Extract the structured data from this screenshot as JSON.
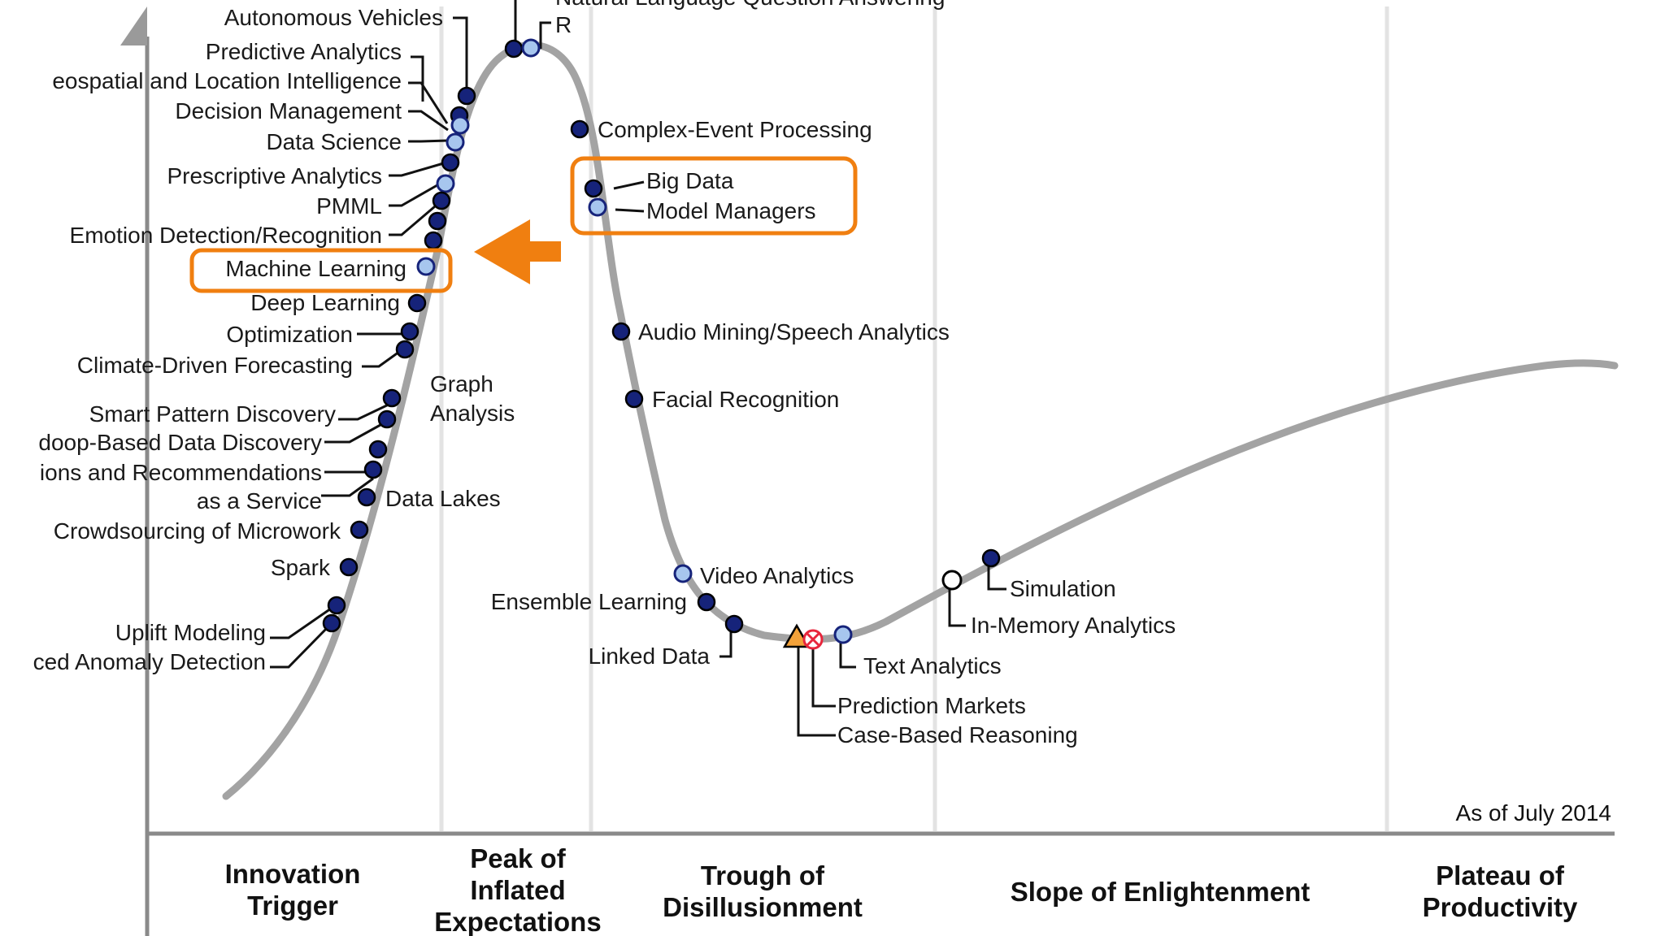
{
  "as_of": "As of July 2014",
  "phases": [
    {
      "lines": [
        "Innovation",
        "Trigger"
      ]
    },
    {
      "lines": [
        "Peak of",
        "Inflated",
        "Expectations"
      ]
    },
    {
      "lines": [
        "Trough of",
        "Disillusionment"
      ]
    },
    {
      "lines": [
        "Slope of Enlightenment"
      ]
    },
    {
      "lines": [
        "Plateau of",
        "Productivity"
      ]
    }
  ],
  "technologies": {
    "autonomous_vehicles": "Autonomous Vehicles",
    "predictive_analytics": "Predictive Analytics",
    "geospatial": "eospatial and Location Intelligence",
    "decision_management": "Decision Management",
    "data_science": "Data Science",
    "prescriptive_analytics": "Prescriptive Analytics",
    "pmml": "PMML",
    "emotion_detection": "Emotion Detection/Recognition",
    "machine_learning": "Machine Learning",
    "deep_learning": "Deep Learning",
    "optimization": "Optimization",
    "climate_forecasting": "Climate-Driven Forecasting",
    "graph_analysis": [
      "Graph",
      "Analysis"
    ],
    "smart_pattern": "Smart Pattern Discovery",
    "hadoop_discovery": "doop-Based Data Discovery",
    "recommendations": [
      "ions and Recommendations",
      "as a Service"
    ],
    "data_lakes": "Data Lakes",
    "crowdsourcing": "Crowdsourcing of  Microwork",
    "spark": "Spark",
    "uplift_modeling": "Uplift Modeling",
    "anomaly_detection": "ced Anomaly Detection",
    "nlqa": "Natural Language Question Answering",
    "r": "R",
    "complex_event": "Complex-Event Processing",
    "big_data": "Big Data",
    "model_managers": "Model Managers",
    "audio_mining": "Audio Mining/Speech Analytics",
    "facial_recognition": "Facial Recognition",
    "video_analytics": "Video Analytics",
    "ensemble_learning": "Ensemble Learning",
    "linked_data": "Linked Data",
    "text_analytics": "Text Analytics",
    "prediction_markets": "Prediction Markets",
    "case_based": "Case-Based Reasoning",
    "simulation": "Simulation",
    "in_memory": "In-Memory Analytics"
  },
  "colors": {
    "curve": "#a3a3a3",
    "dot_dark": "#16237a",
    "dot_light": "#a7c6ee",
    "highlight": "#f07f10",
    "obsolete_marker": "#e8263c",
    "triangle_marker": "#f3a23a"
  }
}
